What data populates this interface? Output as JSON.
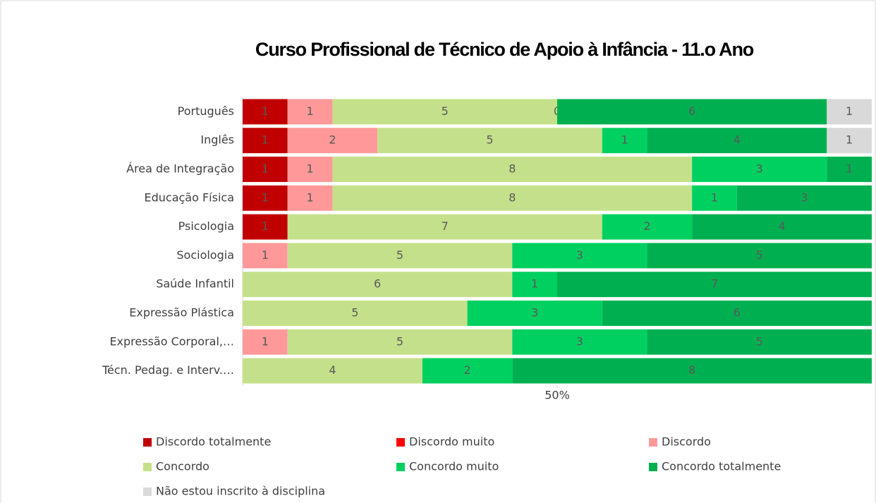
{
  "chart_data": {
    "type": "bar",
    "orientation": "horizontal",
    "stack": "percent",
    "title": "Curso Profissional de Técnico de Apoio à Infância - 11.o Ano",
    "categories": [
      "Português",
      "Inglês",
      "Área de Integração",
      "Educação Física",
      "Psicologia",
      "Sociologia",
      "Saúde Infantil",
      "Expressão Plástica",
      "Expressão Corporal,…",
      "Técn. Pedag. e Interv.…"
    ],
    "series": [
      {
        "name": "Discordo totalmente",
        "color": "#c00000",
        "values": [
          1,
          1,
          1,
          1,
          1,
          null,
          null,
          null,
          null,
          null
        ]
      },
      {
        "name": "Discordo muito",
        "color": "#ff0000",
        "values": [
          null,
          null,
          null,
          null,
          null,
          null,
          null,
          null,
          null,
          null
        ]
      },
      {
        "name": "Discordo",
        "color": "#ff9999",
        "values": [
          1,
          2,
          1,
          1,
          null,
          1,
          null,
          null,
          1,
          null
        ]
      },
      {
        "name": "Concordo",
        "color": "#c5e08b",
        "values": [
          5,
          5,
          8,
          8,
          7,
          5,
          6,
          5,
          5,
          4
        ]
      },
      {
        "name": "Concordo muito",
        "color": "#00d060",
        "values": [
          0,
          1,
          3,
          1,
          2,
          3,
          1,
          3,
          3,
          2
        ]
      },
      {
        "name": "Concordo totalmente",
        "color": "#00b050",
        "values": [
          6,
          4,
          1,
          3,
          4,
          5,
          7,
          6,
          5,
          8
        ]
      },
      {
        "name": "Não estou inscrito à disciplina",
        "color": "#d9d9d9",
        "values": [
          1,
          1,
          null,
          null,
          null,
          null,
          null,
          null,
          null,
          null
        ]
      }
    ],
    "xlim": [
      0,
      100
    ],
    "xticks": [
      {
        "value": 50,
        "label": "50%"
      }
    ],
    "legend": "bottom"
  }
}
